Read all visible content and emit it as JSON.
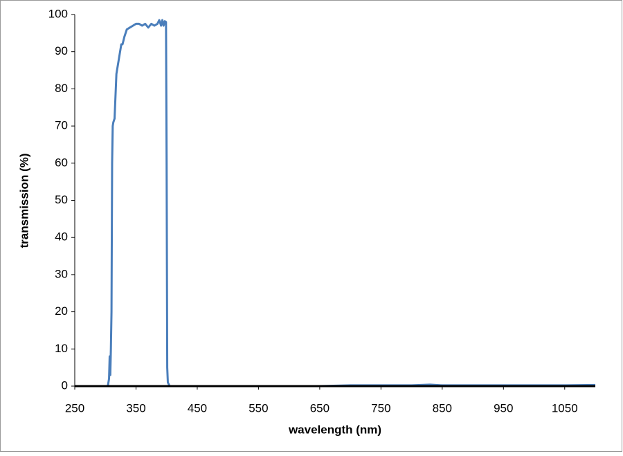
{
  "chart_data": {
    "type": "line",
    "xlabel": "wavelength (nm)",
    "ylabel": "transmission (%)",
    "x": [
      300,
      304,
      306,
      307,
      308,
      309,
      310,
      311,
      312,
      313,
      315,
      317,
      318,
      320,
      322,
      324,
      326,
      328,
      331,
      333,
      335,
      340,
      345,
      350,
      355,
      360,
      365,
      370,
      375,
      380,
      385,
      388,
      391,
      393,
      395,
      397,
      399,
      400,
      401,
      402,
      405,
      450,
      550,
      650,
      700,
      750,
      800,
      830,
      850,
      950,
      1050,
      1100
    ],
    "series": [
      {
        "name": "transmission",
        "color": "#4a7ebb",
        "values": [
          0,
          0,
          2,
          8,
          3,
          10,
          20,
          60,
          70,
          71,
          72,
          80,
          84,
          86,
          88,
          90,
          92,
          92,
          94,
          95,
          96,
          96.5,
          97,
          97.5,
          97.5,
          97,
          97.5,
          96.5,
          97.5,
          97,
          97.5,
          98.5,
          97,
          98.5,
          97,
          98.2,
          98,
          60,
          5,
          1,
          0,
          0,
          0,
          0,
          0.2,
          0.2,
          0.2,
          0.4,
          0.2,
          0.2,
          0.2,
          0.3
        ]
      }
    ],
    "xlim": [
      250,
      1100
    ],
    "xticks": [
      250,
      350,
      450,
      550,
      650,
      750,
      850,
      950,
      1050
    ],
    "ylim": [
      0,
      100
    ],
    "yticks": [
      0,
      10,
      20,
      30,
      40,
      50,
      60,
      70,
      80,
      90,
      100
    ],
    "grid": false
  }
}
